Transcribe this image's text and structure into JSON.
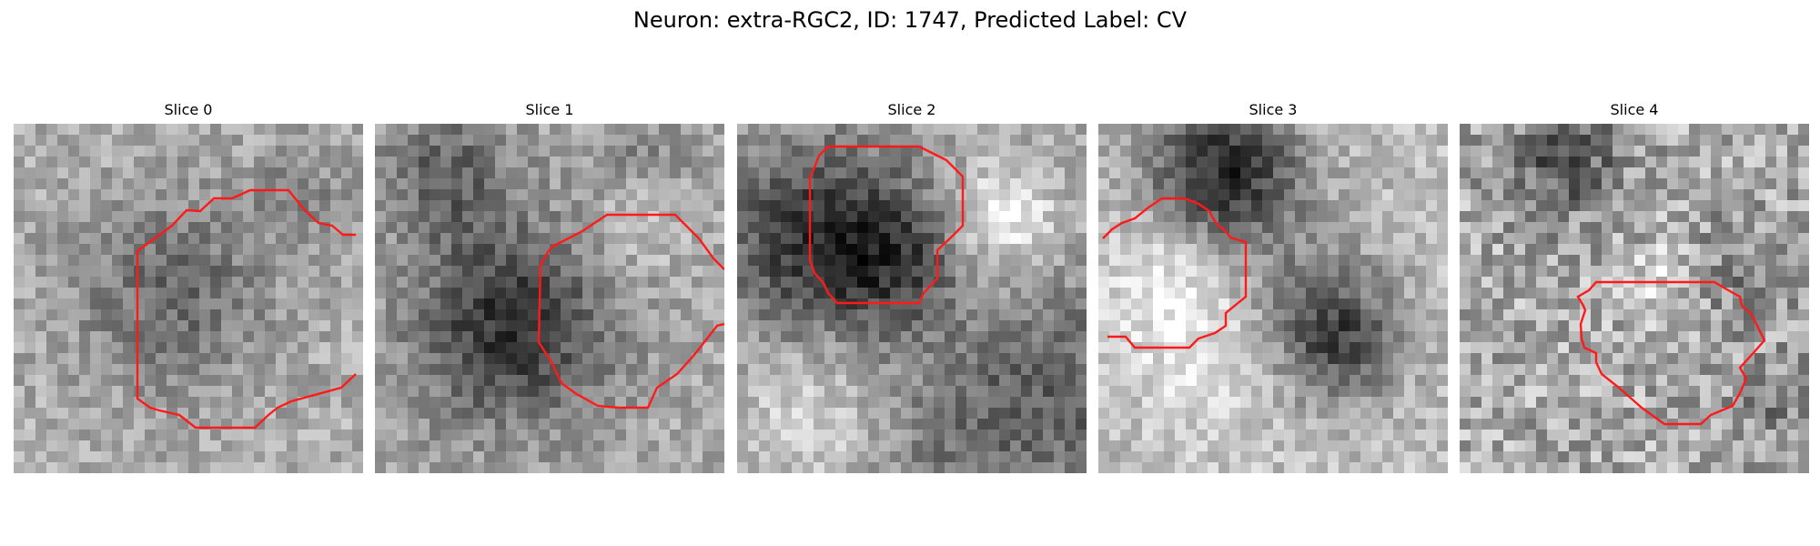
{
  "figure": {
    "title": "Neuron: extra-RGC2, ID: 1747, Predicted Label: CV"
  },
  "panels": [
    {
      "title": "Slice 0"
    },
    {
      "title": "Slice 1"
    },
    {
      "title": "Slice 2"
    },
    {
      "title": "Slice 3"
    },
    {
      "title": "Slice 4"
    }
  ],
  "colors": {
    "contour": "#ff1a1a",
    "background": "#ffffff"
  },
  "colormap": "gray"
}
